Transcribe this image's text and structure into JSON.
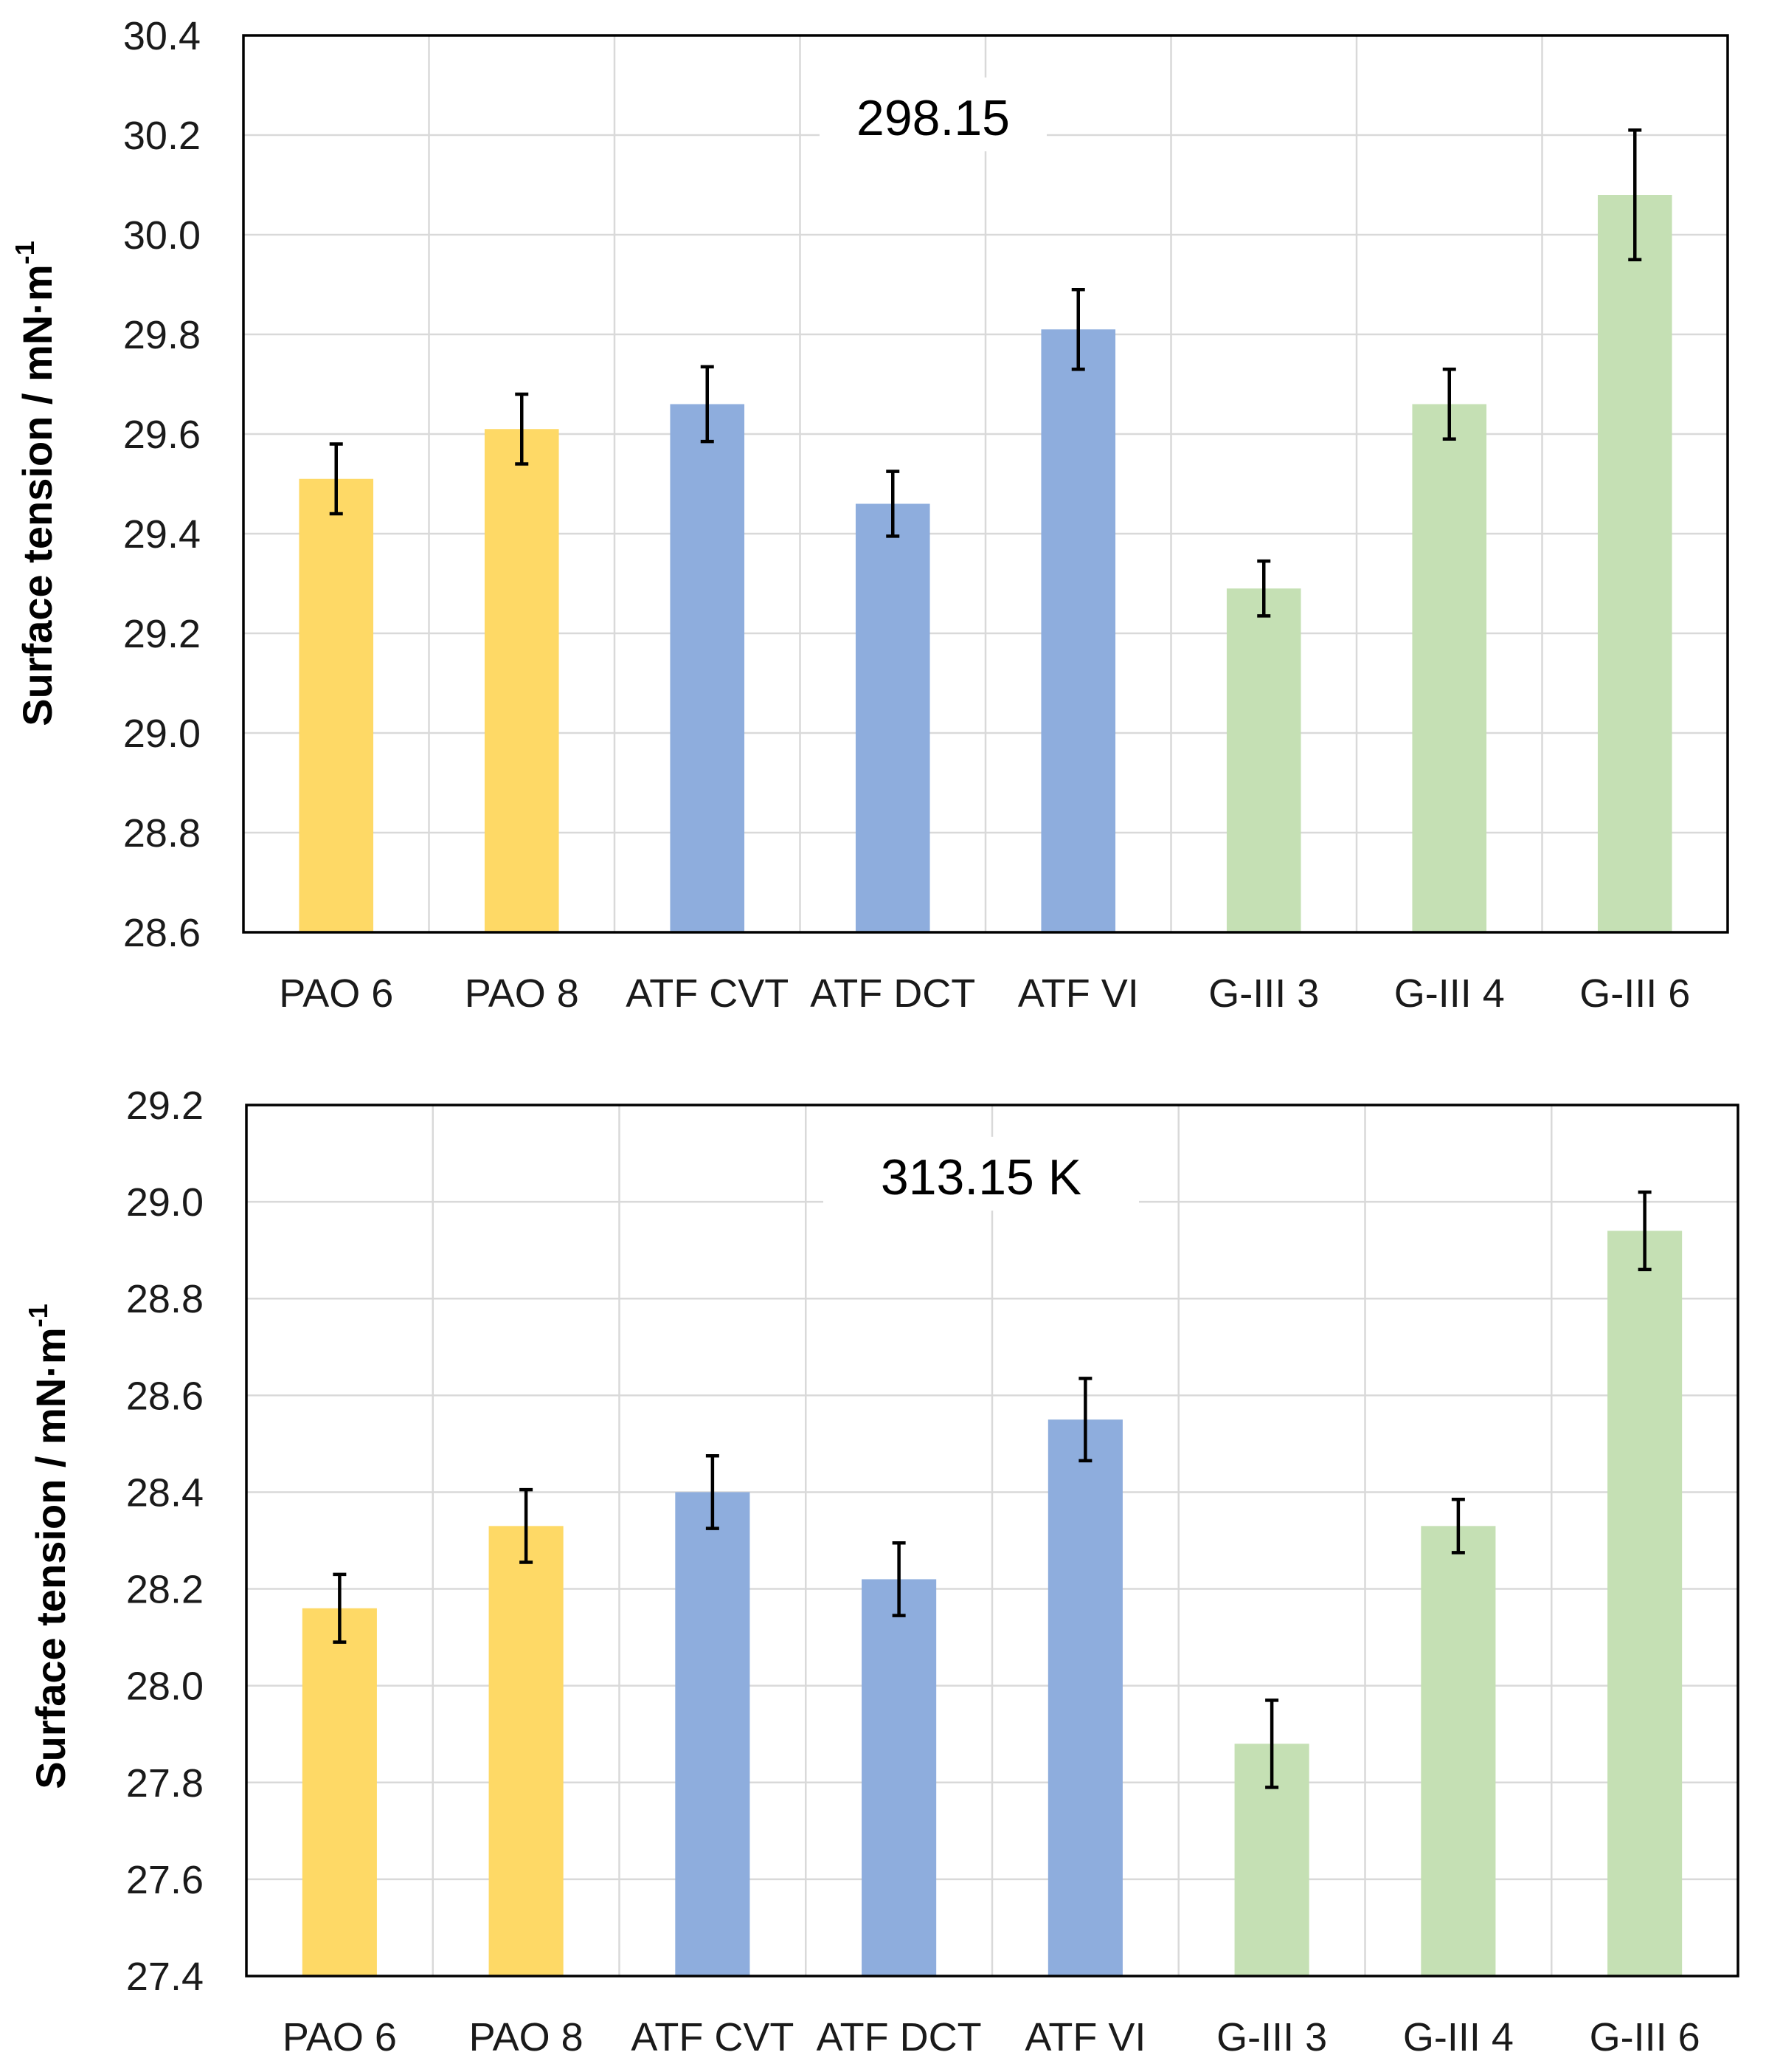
{
  "colors": {
    "pao": "#fed966",
    "atf": "#8eaddd",
    "giii": "#c5e0b4",
    "grid": "#d9d9d9",
    "axis": "#000000",
    "text": "#1a1a1a"
  },
  "chart_data": [
    {
      "type": "bar",
      "title": "298.15",
      "xlabel": "",
      "ylabel": "Surface tension / mN·m",
      "ylabel_superscript": "-1",
      "ylim": [
        28.6,
        30.4
      ],
      "yticks": [
        "28.6",
        "28.8",
        "29.0",
        "29.2",
        "29.4",
        "29.6",
        "29.8",
        "30.0",
        "30.2",
        "30.4"
      ],
      "grid": true,
      "categories": [
        "PAO 6",
        "PAO 8",
        "ATF CVT",
        "ATF DCT",
        "ATF VI",
        "G-III 3",
        "G-III 4",
        "G-III 6"
      ],
      "groups": [
        "pao",
        "pao",
        "atf",
        "atf",
        "atf",
        "giii",
        "giii",
        "giii"
      ],
      "values": [
        29.51,
        29.61,
        29.66,
        29.46,
        29.81,
        29.29,
        29.66,
        30.08
      ],
      "errors": [
        0.07,
        0.07,
        0.075,
        0.065,
        0.08,
        0.055,
        0.07,
        0.13
      ]
    },
    {
      "type": "bar",
      "title": "313.15 K",
      "xlabel": "",
      "ylabel": "Surface tension / mN·m",
      "ylabel_superscript": "-1",
      "ylim": [
        27.4,
        29.2
      ],
      "yticks": [
        "27.4",
        "27.6",
        "27.8",
        "28.0",
        "28.2",
        "28.4",
        "28.6",
        "28.8",
        "29.0",
        "29.2"
      ],
      "grid": true,
      "categories": [
        "PAO 6",
        "PAO 8",
        "ATF CVT",
        "ATF DCT",
        "ATF VI",
        "G-III 3",
        "G-III 4",
        "G-III 6"
      ],
      "groups": [
        "pao",
        "pao",
        "atf",
        "atf",
        "atf",
        "giii",
        "giii",
        "giii"
      ],
      "values": [
        28.16,
        28.33,
        28.4,
        28.22,
        28.55,
        27.88,
        28.33,
        28.94
      ],
      "errors": [
        0.07,
        0.075,
        0.075,
        0.075,
        0.085,
        0.09,
        0.055,
        0.08
      ]
    }
  ]
}
